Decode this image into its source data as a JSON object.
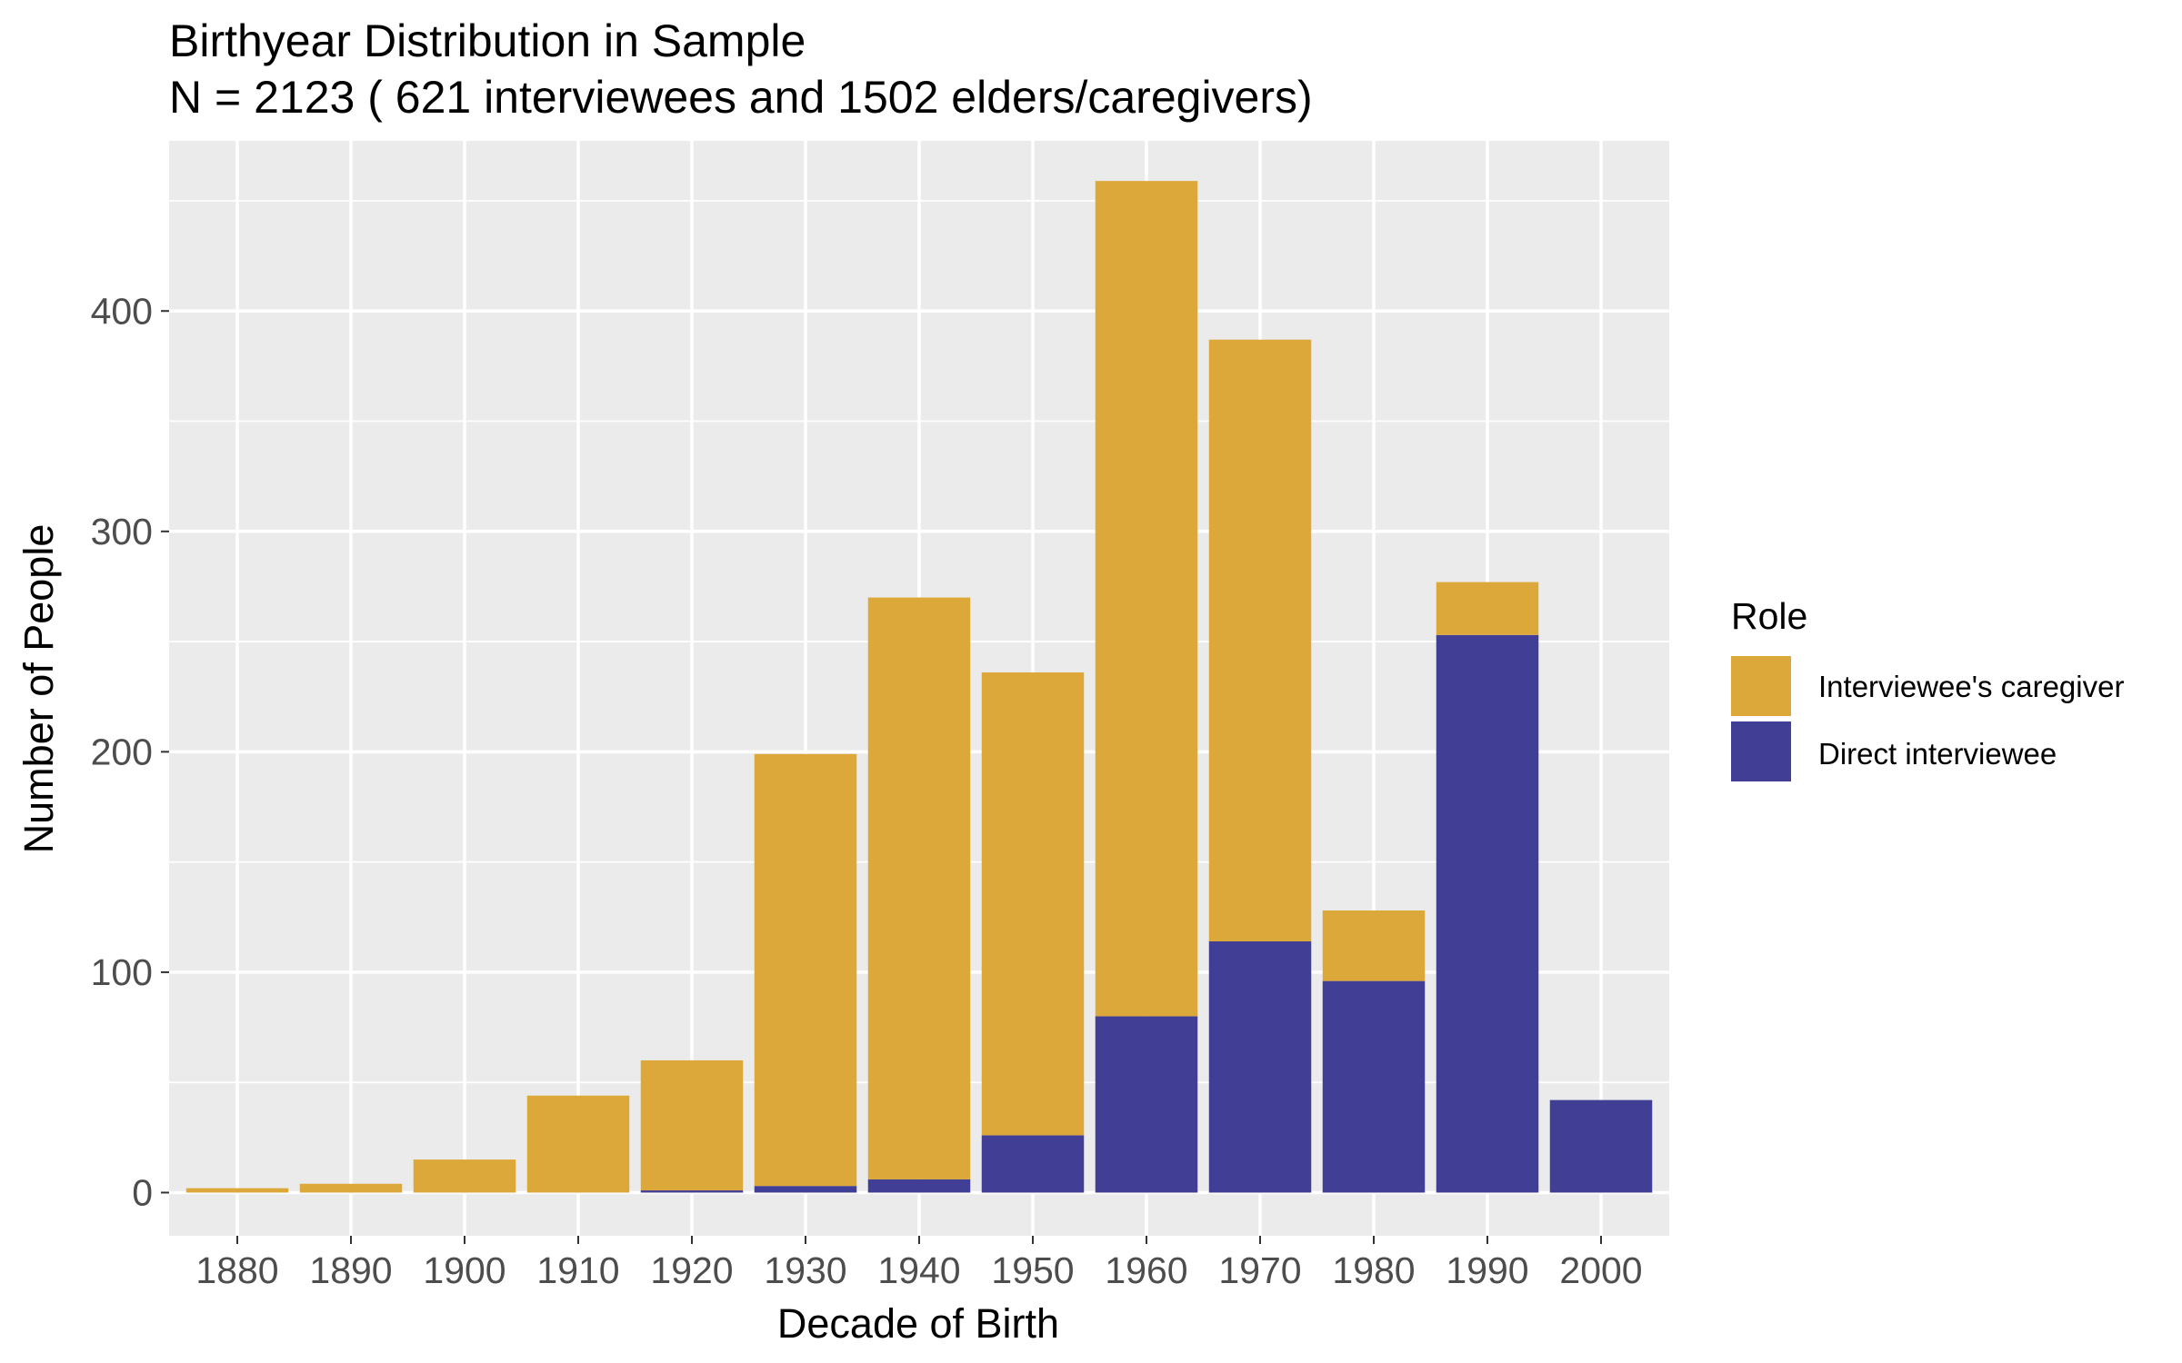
{
  "chart_data": {
    "type": "bar",
    "stacked": true,
    "title": "Birthyear Distribution in Sample",
    "subtitle": "N = 2123 ( 621 interviewees and 1502 elders/caregivers)",
    "xlabel": "Decade of Birth",
    "ylabel": "Number of People",
    "categories": [
      "1880",
      "1890",
      "1900",
      "1910",
      "1920",
      "1930",
      "1940",
      "1950",
      "1960",
      "1970",
      "1980",
      "1990",
      "2000"
    ],
    "series": [
      {
        "name": "Direct interviewee",
        "color": "#413f95",
        "values": [
          0,
          0,
          0,
          0,
          1,
          3,
          6,
          26,
          80,
          114,
          96,
          253,
          42
        ]
      },
      {
        "name": "Interviewee's caregiver",
        "color": "#dda83a",
        "values": [
          2,
          4,
          15,
          44,
          59,
          196,
          264,
          210,
          379,
          273,
          32,
          24,
          0
        ]
      }
    ],
    "ylim": [
      -19.6,
      477.2
    ],
    "yticks": [
      0,
      100,
      200,
      300,
      400
    ],
    "grid": true,
    "panel_background": "#ebebeb",
    "legend": {
      "title": "Role",
      "position": "right",
      "items": [
        {
          "label": "Interviewee's caregiver",
          "color": "#dda83a"
        },
        {
          "label": "Direct interviewee",
          "color": "#413f95"
        }
      ]
    }
  }
}
